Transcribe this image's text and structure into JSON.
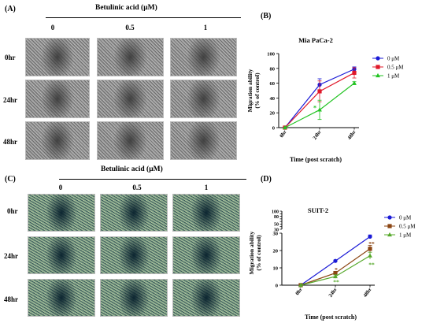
{
  "panels": {
    "A": {
      "letter": "(A)",
      "treatment_title": "Betulinic acid  (μM)",
      "concentrations": [
        "0",
        "0.5",
        "1"
      ],
      "times": [
        "0hr",
        "24hr",
        "48hr"
      ],
      "image_style": "grayscale-micrograph"
    },
    "C": {
      "letter": "(C)",
      "treatment_title": "Betulinic acid  (μM)",
      "concentrations": [
        "0",
        "0.5",
        "1"
      ],
      "times": [
        "0hr",
        "24hr",
        "48hr"
      ],
      "image_style": "teal-micrograph"
    },
    "B_letter": "(B)",
    "D_letter": "(D)"
  },
  "chart_data": [
    {
      "type": "line",
      "title": "Mia PaCa-2",
      "xlabel": "Time (post scratch)",
      "ylabel": "Migration ability (% of control)",
      "ylabel_lines": [
        "Migration ability",
        "(% of control)"
      ],
      "categories": [
        "0hr",
        "24hr",
        "48hr"
      ],
      "ylim": [
        0,
        100
      ],
      "yticks": [
        0,
        20,
        40,
        60,
        80,
        100
      ],
      "legend_position": "top-right",
      "series": [
        {
          "name": "0 μM",
          "color": "#1a1ad6",
          "marker": "circle",
          "values": [
            0,
            58,
            79
          ],
          "errors": [
            0,
            8,
            3
          ]
        },
        {
          "name": "0.5 μM",
          "color": "#e0182a",
          "marker": "square",
          "values": [
            0,
            49,
            74
          ],
          "errors": [
            0,
            14,
            7
          ]
        },
        {
          "name": "1 μM",
          "color": "#22c322",
          "marker": "triangle",
          "values": [
            0,
            24,
            60
          ],
          "errors": [
            0,
            13,
            2
          ]
        }
      ],
      "annotations": [
        {
          "text": "*",
          "x_index": 1,
          "y": 27,
          "color": "#22c322"
        }
      ]
    },
    {
      "type": "line",
      "title": "SUIT-2",
      "xlabel": "Time (post scratch)",
      "ylabel": "Migration ability (% of control)",
      "ylabel_lines": [
        "Migration ability",
        "(% of control)"
      ],
      "categories": [
        "0hr",
        "24hr",
        "48hr"
      ],
      "y_axis_break": {
        "lower": [
          0,
          30
        ],
        "upper": [
          30,
          100
        ]
      },
      "yticks_lower": [
        0,
        10,
        20,
        30
      ],
      "yticks_upper": [
        30,
        40,
        50,
        60,
        70,
        80,
        90,
        100
      ],
      "legend_position": "top-right",
      "series": [
        {
          "name": "0 μM",
          "color": "#1a1ad6",
          "marker": "circle",
          "values": [
            0,
            14,
            28
          ],
          "errors": [
            0,
            0.5,
            1
          ]
        },
        {
          "name": "0.5 μM",
          "color": "#8b4513",
          "marker": "square",
          "values": [
            0,
            7,
            21
          ],
          "errors": [
            0,
            1,
            2
          ]
        },
        {
          "name": "1 μM",
          "color": "#55a82a",
          "marker": "triangle",
          "values": [
            0,
            5,
            17
          ],
          "errors": [
            0,
            1,
            2
          ]
        }
      ],
      "annotations": [
        {
          "text": "*",
          "x_index": 1,
          "y": 9,
          "color": "#8b4513"
        },
        {
          "text": "**",
          "x_index": 1,
          "y": 2,
          "color": "#55a82a"
        },
        {
          "text": "**",
          "x_index": 2,
          "y": 24,
          "color": "#8b4513"
        },
        {
          "text": "**",
          "x_index": 2,
          "y": 12,
          "color": "#55a82a"
        }
      ]
    }
  ]
}
